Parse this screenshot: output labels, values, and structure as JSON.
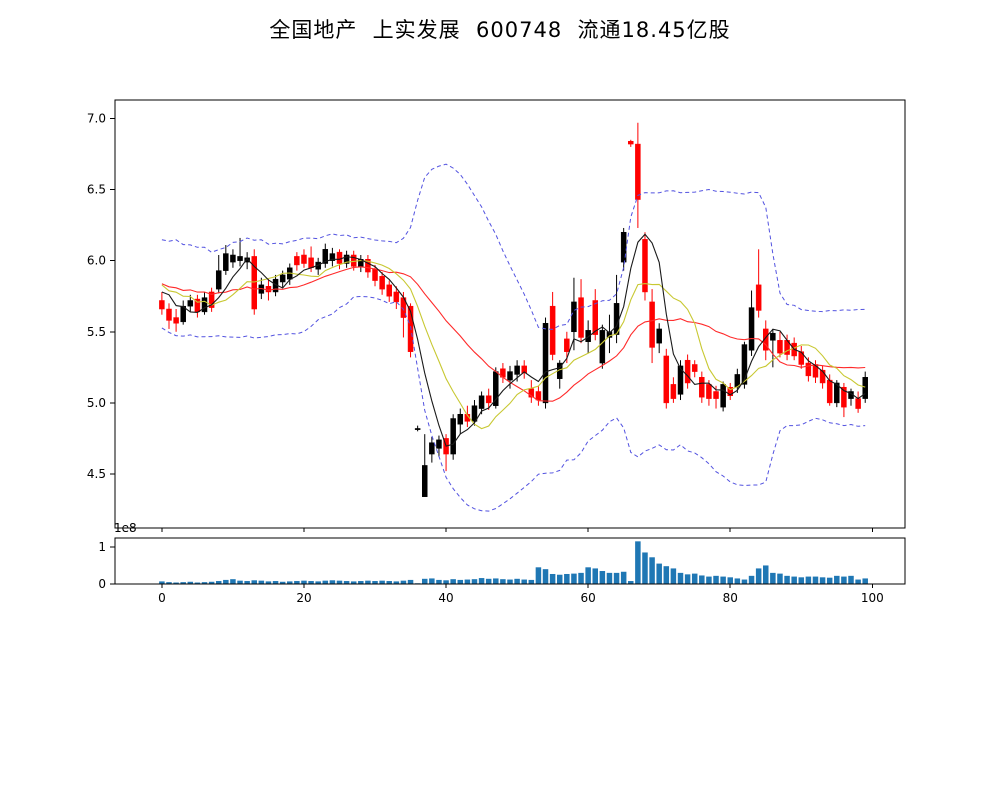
{
  "title": "全国地产  上实发展  600748  流通18.45亿股",
  "colors": {
    "background": "#ffffff",
    "candle_up": "#000000",
    "candle_down": "#ff0000",
    "sma_fast": "#1a1a1a",
    "sma_mid": "#c8c832",
    "sma_slow": "#ff2a2a",
    "bollinger_band": "#5252e0",
    "volume_bar": "#1f77b4",
    "axis": "#000000"
  },
  "chart_data": [
    {
      "type": "candlestick",
      "title": "",
      "xlabel": "",
      "ylabel": "",
      "xlim": [
        -6.6,
        104.6
      ],
      "ylim": [
        4.12,
        7.13
      ],
      "yticks": [
        7.0,
        6.5,
        6.0,
        5.5,
        5.0,
        4.5
      ],
      "xticks": [
        0,
        20,
        40,
        60,
        80,
        100
      ],
      "grid": false,
      "candles": [
        [
          5.72,
          5.78,
          5.62,
          5.66
        ],
        [
          5.66,
          5.7,
          5.52,
          5.58
        ],
        [
          5.6,
          5.66,
          5.5,
          5.56
        ],
        [
          5.57,
          5.72,
          5.55,
          5.68
        ],
        [
          5.68,
          5.76,
          5.64,
          5.72
        ],
        [
          5.73,
          5.76,
          5.6,
          5.64
        ],
        [
          5.64,
          5.78,
          5.62,
          5.74
        ],
        [
          5.78,
          5.81,
          5.64,
          5.67
        ],
        [
          5.8,
          6.04,
          5.77,
          5.93
        ],
        [
          5.93,
          6.11,
          5.9,
          6.05
        ],
        [
          5.99,
          6.08,
          5.95,
          6.04
        ],
        [
          6.0,
          6.16,
          5.96,
          6.03
        ],
        [
          5.99,
          6.06,
          5.94,
          6.02
        ],
        [
          6.03,
          6.08,
          5.62,
          5.66
        ],
        [
          5.77,
          5.88,
          5.73,
          5.83
        ],
        [
          5.82,
          5.87,
          5.72,
          5.78
        ],
        [
          5.78,
          5.9,
          5.75,
          5.87
        ],
        [
          5.85,
          5.93,
          5.81,
          5.9
        ],
        [
          5.87,
          5.98,
          5.83,
          5.95
        ],
        [
          6.03,
          6.06,
          5.93,
          5.97
        ],
        [
          6.04,
          6.08,
          5.95,
          5.98
        ],
        [
          6.02,
          6.1,
          5.92,
          5.95
        ],
        [
          5.94,
          6.02,
          5.9,
          5.99
        ],
        [
          5.98,
          6.12,
          5.95,
          6.08
        ],
        [
          6.0,
          6.09,
          5.96,
          6.05
        ],
        [
          6.06,
          6.08,
          5.94,
          5.98
        ],
        [
          5.98,
          6.07,
          5.95,
          6.04
        ],
        [
          6.04,
          6.07,
          5.93,
          5.96
        ],
        [
          5.96,
          6.04,
          5.92,
          6.01
        ],
        [
          6.01,
          6.04,
          5.88,
          5.92
        ],
        [
          5.94,
          5.97,
          5.82,
          5.86
        ],
        [
          5.89,
          5.92,
          5.76,
          5.8
        ],
        [
          5.83,
          5.86,
          5.71,
          5.75
        ],
        [
          5.78,
          5.82,
          5.66,
          5.71
        ],
        [
          5.74,
          5.78,
          5.46,
          5.6
        ],
        [
          5.68,
          5.7,
          5.32,
          5.36
        ],
        [
          4.82,
          4.84,
          4.8,
          4.82
        ],
        [
          4.34,
          4.78,
          4.34,
          4.56
        ],
        [
          4.64,
          4.76,
          4.58,
          4.72
        ],
        [
          4.68,
          4.77,
          4.62,
          4.74
        ],
        [
          4.75,
          4.78,
          4.52,
          4.64
        ],
        [
          4.64,
          4.92,
          4.6,
          4.89
        ],
        [
          4.85,
          4.96,
          4.78,
          4.92
        ],
        [
          4.92,
          4.98,
          4.83,
          4.87
        ],
        [
          4.87,
          5.02,
          4.84,
          4.98
        ],
        [
          4.96,
          5.08,
          4.92,
          5.05
        ],
        [
          5.05,
          5.1,
          4.95,
          5.0
        ],
        [
          4.98,
          5.25,
          4.96,
          5.22
        ],
        [
          5.24,
          5.28,
          5.14,
          5.18
        ],
        [
          5.16,
          5.26,
          5.1,
          5.22
        ],
        [
          5.2,
          5.3,
          5.15,
          5.26
        ],
        [
          5.26,
          5.3,
          5.17,
          5.21
        ],
        [
          5.1,
          5.16,
          5.0,
          5.04
        ],
        [
          5.08,
          5.12,
          4.98,
          5.02
        ],
        [
          5.0,
          5.6,
          4.96,
          5.56
        ],
        [
          5.68,
          5.78,
          5.3,
          5.34
        ],
        [
          5.17,
          5.3,
          5.1,
          5.28
        ],
        [
          5.45,
          5.5,
          5.28,
          5.36
        ],
        [
          5.5,
          5.88,
          5.37,
          5.71
        ],
        [
          5.74,
          5.87,
          5.42,
          5.46
        ],
        [
          5.43,
          5.58,
          5.35,
          5.51
        ],
        [
          5.72,
          5.8,
          5.44,
          5.48
        ],
        [
          5.28,
          5.55,
          5.24,
          5.51
        ],
        [
          5.46,
          5.62,
          5.35,
          5.5
        ],
        [
          5.48,
          5.9,
          5.42,
          5.7
        ],
        [
          5.99,
          6.23,
          5.93,
          6.2
        ],
        [
          6.84,
          6.85,
          6.8,
          6.82
        ],
        [
          6.82,
          6.97,
          6.23,
          6.43
        ],
        [
          6.15,
          6.2,
          5.72,
          5.78
        ],
        [
          5.71,
          5.8,
          5.28,
          5.39
        ],
        [
          5.42,
          5.56,
          5.35,
          5.52
        ],
        [
          5.33,
          5.38,
          4.96,
          5.0
        ],
        [
          5.13,
          5.18,
          5.0,
          5.03
        ],
        [
          5.06,
          5.3,
          5.02,
          5.26
        ],
        [
          5.3,
          5.34,
          5.1,
          5.14
        ],
        [
          5.27,
          5.3,
          5.18,
          5.22
        ],
        [
          5.18,
          5.22,
          5.0,
          5.04
        ],
        [
          5.13,
          5.16,
          4.98,
          5.03
        ],
        [
          5.08,
          5.12,
          4.96,
          5.03
        ],
        [
          4.97,
          5.15,
          4.94,
          5.13
        ],
        [
          5.11,
          5.14,
          5.02,
          5.05
        ],
        [
          5.11,
          5.24,
          5.07,
          5.2
        ],
        [
          5.13,
          5.43,
          5.1,
          5.41
        ],
        [
          5.37,
          5.79,
          5.33,
          5.67
        ],
        [
          5.83,
          6.08,
          5.6,
          5.65
        ],
        [
          5.52,
          5.58,
          5.3,
          5.37
        ],
        [
          5.44,
          5.52,
          5.25,
          5.49
        ],
        [
          5.44,
          5.5,
          5.32,
          5.35
        ],
        [
          5.44,
          5.48,
          5.3,
          5.34
        ],
        [
          5.42,
          5.46,
          5.3,
          5.33
        ],
        [
          5.36,
          5.4,
          5.24,
          5.27
        ],
        [
          5.28,
          5.32,
          5.15,
          5.19
        ],
        [
          5.27,
          5.3,
          5.14,
          5.18
        ],
        [
          5.23,
          5.26,
          5.1,
          5.14
        ],
        [
          5.16,
          5.2,
          4.98,
          5.0
        ],
        [
          5.0,
          5.16,
          4.97,
          5.14
        ],
        [
          5.11,
          5.14,
          4.9,
          4.97
        ],
        [
          5.03,
          5.1,
          4.98,
          5.08
        ],
        [
          5.03,
          5.08,
          4.93,
          4.96
        ],
        [
          5.03,
          5.22,
          5.0,
          5.18
        ]
      ],
      "indicators": {
        "sma": [
          {
            "name": "ma-fast",
            "window": 5
          },
          {
            "name": "ma-mid",
            "window": 10
          },
          {
            "name": "ma-slow",
            "window": 20
          }
        ],
        "bollinger": {
          "window": 20,
          "mult": 2
        },
        "warmup_closes": [
          5.85,
          6.0,
          5.7,
          6.05,
          5.65,
          5.95,
          5.72,
          6.02,
          5.68,
          5.98,
          5.7,
          6.0,
          5.66,
          5.96,
          5.74,
          6.04,
          5.68,
          5.94,
          5.72,
          5.9
        ]
      }
    },
    {
      "type": "bar",
      "title": "",
      "xlabel": "",
      "ylabel": "",
      "scale_label": "1e8",
      "unit_multiplier": 100000000,
      "xlim": [
        -6.6,
        104.6
      ],
      "ylim": [
        0,
        1.24
      ],
      "yticks": [
        1,
        0
      ],
      "xticks": [
        0,
        20,
        40,
        60,
        80,
        100
      ],
      "grid": false,
      "values": [
        0.07,
        0.05,
        0.04,
        0.05,
        0.06,
        0.04,
        0.05,
        0.06,
        0.08,
        0.11,
        0.13,
        0.09,
        0.08,
        0.1,
        0.09,
        0.07,
        0.08,
        0.06,
        0.07,
        0.08,
        0.09,
        0.08,
        0.07,
        0.09,
        0.1,
        0.09,
        0.08,
        0.07,
        0.08,
        0.09,
        0.08,
        0.09,
        0.08,
        0.07,
        0.09,
        0.11,
        0.02,
        0.14,
        0.15,
        0.11,
        0.1,
        0.13,
        0.11,
        0.12,
        0.13,
        0.16,
        0.14,
        0.15,
        0.13,
        0.12,
        0.14,
        0.12,
        0.11,
        0.45,
        0.4,
        0.27,
        0.25,
        0.27,
        0.28,
        0.3,
        0.45,
        0.42,
        0.35,
        0.3,
        0.3,
        0.33,
        0.08,
        1.15,
        0.85,
        0.72,
        0.55,
        0.48,
        0.42,
        0.3,
        0.26,
        0.28,
        0.23,
        0.2,
        0.22,
        0.2,
        0.18,
        0.15,
        0.12,
        0.22,
        0.42,
        0.5,
        0.3,
        0.28,
        0.22,
        0.2,
        0.18,
        0.2,
        0.2,
        0.18,
        0.17,
        0.22,
        0.2,
        0.22,
        0.12,
        0.15
      ]
    }
  ]
}
